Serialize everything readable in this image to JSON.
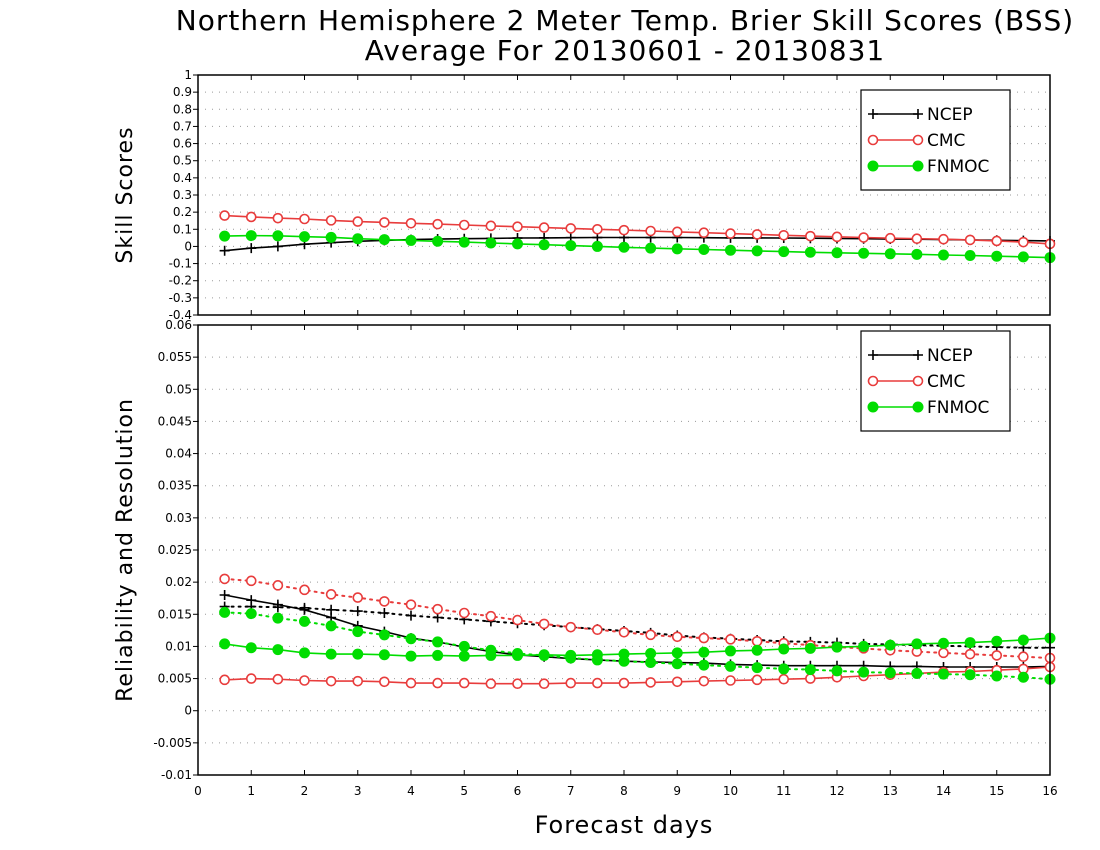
{
  "title": {
    "line1": "Northern Hemisphere 2 Meter Temp. Brier Skill Scores (BSS)",
    "line2": "Average For 20130601 - 20130831"
  },
  "colors": {
    "NCEP": "#000000",
    "CMC": "#e83c3c",
    "FNMOC": "#00dd00",
    "grid": "#9a9a9a",
    "frame": "#000000"
  },
  "chart_data": [
    {
      "type": "line",
      "panel": "top",
      "ylabel": "Skill Scores",
      "xlabel": "",
      "xlim": [
        0,
        16
      ],
      "ylim": [
        -0.4,
        1
      ],
      "xticks": [
        "0",
        "1",
        "2",
        "3",
        "4",
        "5",
        "6",
        "7",
        "8",
        "9",
        "10",
        "11",
        "12",
        "13",
        "14",
        "15",
        "16"
      ],
      "yticks": [
        "-0.4",
        "-0.3",
        "-0.2",
        "-0.1",
        "0",
        "0.1",
        "0.2",
        "0.3",
        "0.4",
        "0.5",
        "0.6",
        "0.7",
        "0.8",
        "0.9",
        "1"
      ],
      "grid": "dotted horizontal",
      "legend": "top-right",
      "x": [
        0.5,
        1,
        1.5,
        2,
        2.5,
        3,
        3.5,
        4,
        4.5,
        5,
        5.5,
        6,
        6.5,
        7,
        7.5,
        8,
        8.5,
        9,
        9.5,
        10,
        10.5,
        11,
        11.5,
        12,
        12.5,
        13,
        13.5,
        14,
        14.5,
        15,
        15.5,
        16
      ],
      "series": [
        {
          "name": "NCEP",
          "marker": "plus",
          "style": "solid",
          "values": [
            -0.025,
            -0.01,
            0.0,
            0.013,
            0.022,
            0.03,
            0.035,
            0.04,
            0.043,
            0.045,
            0.047,
            0.049,
            0.05,
            0.051,
            0.052,
            0.052,
            0.052,
            0.052,
            0.051,
            0.05,
            0.05,
            0.049,
            0.048,
            0.046,
            0.045,
            0.043,
            0.042,
            0.04,
            0.038,
            0.036,
            0.034,
            0.032
          ]
        },
        {
          "name": "CMC",
          "marker": "open-circle",
          "style": "solid",
          "values": [
            0.18,
            0.172,
            0.165,
            0.16,
            0.152,
            0.145,
            0.14,
            0.135,
            0.13,
            0.125,
            0.12,
            0.115,
            0.11,
            0.105,
            0.1,
            0.095,
            0.09,
            0.085,
            0.08,
            0.075,
            0.07,
            0.065,
            0.06,
            0.056,
            0.052,
            0.048,
            0.045,
            0.042,
            0.038,
            0.032,
            0.025,
            0.015
          ]
        },
        {
          "name": "FNMOC",
          "marker": "filled-circle",
          "style": "solid",
          "values": [
            0.06,
            0.063,
            0.062,
            0.057,
            0.053,
            0.045,
            0.04,
            0.035,
            0.03,
            0.025,
            0.02,
            0.015,
            0.01,
            0.005,
            0.0,
            -0.005,
            -0.01,
            -0.014,
            -0.018,
            -0.022,
            -0.026,
            -0.03,
            -0.034,
            -0.037,
            -0.04,
            -0.043,
            -0.046,
            -0.05,
            -0.053,
            -0.057,
            -0.061,
            -0.065
          ]
        }
      ]
    },
    {
      "type": "line",
      "panel": "bottom",
      "ylabel": "Reliability and Resolution",
      "xlabel": "Forecast days",
      "xlim": [
        0,
        16
      ],
      "ylim": [
        -0.01,
        0.06
      ],
      "xticks": [
        "0",
        "1",
        "2",
        "3",
        "4",
        "5",
        "6",
        "7",
        "8",
        "9",
        "10",
        "11",
        "12",
        "13",
        "14",
        "15",
        "16"
      ],
      "yticks": [
        "-0.01",
        "-0.005",
        "0",
        "0.005",
        "0.01",
        "0.015",
        "0.02",
        "0.025",
        "0.03",
        "0.035",
        "0.04",
        "0.045",
        "0.05",
        "0.055",
        "0.06"
      ],
      "grid": "dotted horizontal",
      "legend": "top-right",
      "x": [
        0.5,
        1,
        1.5,
        2,
        2.5,
        3,
        3.5,
        4,
        4.5,
        5,
        5.5,
        6,
        6.5,
        7,
        7.5,
        8,
        8.5,
        9,
        9.5,
        10,
        10.5,
        11,
        11.5,
        12,
        12.5,
        13,
        13.5,
        14,
        14.5,
        15,
        15.5,
        16
      ],
      "series": [
        {
          "name": "NCEP",
          "component": "reliability",
          "marker": "plus",
          "style": "solid",
          "values": [
            0.018,
            0.0172,
            0.0165,
            0.0157,
            0.0145,
            0.0132,
            0.0123,
            0.0113,
            0.0107,
            0.0099,
            0.0092,
            0.0087,
            0.0084,
            0.0081,
            0.0079,
            0.0077,
            0.0076,
            0.0075,
            0.0074,
            0.0072,
            0.0071,
            0.007,
            0.007,
            0.007,
            0.007,
            0.0069,
            0.0069,
            0.0068,
            0.0068,
            0.0068,
            0.0068,
            0.0069
          ]
        },
        {
          "name": "NCEP",
          "component": "resolution",
          "marker": "plus",
          "style": "dotted",
          "values": [
            0.0162,
            0.0162,
            0.0161,
            0.016,
            0.0157,
            0.0155,
            0.0152,
            0.0148,
            0.0145,
            0.0142,
            0.0139,
            0.0136,
            0.0133,
            0.013,
            0.0127,
            0.0124,
            0.0121,
            0.0117,
            0.0114,
            0.0112,
            0.011,
            0.0108,
            0.0107,
            0.0106,
            0.0104,
            0.0103,
            0.0102,
            0.0101,
            0.01,
            0.0099,
            0.0098,
            0.0098
          ]
        },
        {
          "name": "CMC",
          "component": "reliability",
          "marker": "open-circle",
          "style": "solid",
          "values": [
            0.0048,
            0.005,
            0.0049,
            0.0047,
            0.0046,
            0.0046,
            0.0045,
            0.0043,
            0.0043,
            0.0043,
            0.0042,
            0.0042,
            0.0042,
            0.0043,
            0.0043,
            0.0043,
            0.0044,
            0.0045,
            0.0046,
            0.0047,
            0.0048,
            0.0049,
            0.005,
            0.0052,
            0.0054,
            0.0056,
            0.0058,
            0.006,
            0.0061,
            0.0063,
            0.0065,
            0.0068
          ]
        },
        {
          "name": "CMC",
          "component": "resolution",
          "marker": "open-circle",
          "style": "dotted",
          "values": [
            0.0205,
            0.0202,
            0.0195,
            0.0188,
            0.0181,
            0.0176,
            0.017,
            0.0165,
            0.0158,
            0.0152,
            0.0147,
            0.0141,
            0.0135,
            0.013,
            0.0126,
            0.0122,
            0.0118,
            0.0115,
            0.0113,
            0.0111,
            0.0108,
            0.0105,
            0.0102,
            0.0099,
            0.0097,
            0.0094,
            0.0092,
            0.009,
            0.0088,
            0.0086,
            0.0084,
            0.0082
          ]
        },
        {
          "name": "FNMOC",
          "component": "reliability",
          "marker": "filled-circle",
          "style": "solid",
          "values": [
            0.0104,
            0.0098,
            0.0095,
            0.009,
            0.0088,
            0.0088,
            0.0087,
            0.0085,
            0.0086,
            0.0085,
            0.0086,
            0.0086,
            0.0087,
            0.0086,
            0.0087,
            0.0088,
            0.0089,
            0.009,
            0.0091,
            0.0093,
            0.0094,
            0.0096,
            0.0097,
            0.0099,
            0.01,
            0.0102,
            0.0104,
            0.0105,
            0.0106,
            0.0108,
            0.011,
            0.0113
          ]
        },
        {
          "name": "FNMOC",
          "component": "resolution",
          "marker": "filled-circle",
          "style": "dotted",
          "values": [
            0.0153,
            0.0151,
            0.0144,
            0.0139,
            0.0132,
            0.0123,
            0.0118,
            0.0112,
            0.0107,
            0.01,
            0.0094,
            0.0089,
            0.0086,
            0.0082,
            0.0079,
            0.0077,
            0.0075,
            0.0073,
            0.0071,
            0.0069,
            0.0067,
            0.0065,
            0.0064,
            0.0062,
            0.006,
            0.0059,
            0.0058,
            0.0057,
            0.0056,
            0.0054,
            0.0052,
            0.0049
          ]
        }
      ]
    }
  ]
}
